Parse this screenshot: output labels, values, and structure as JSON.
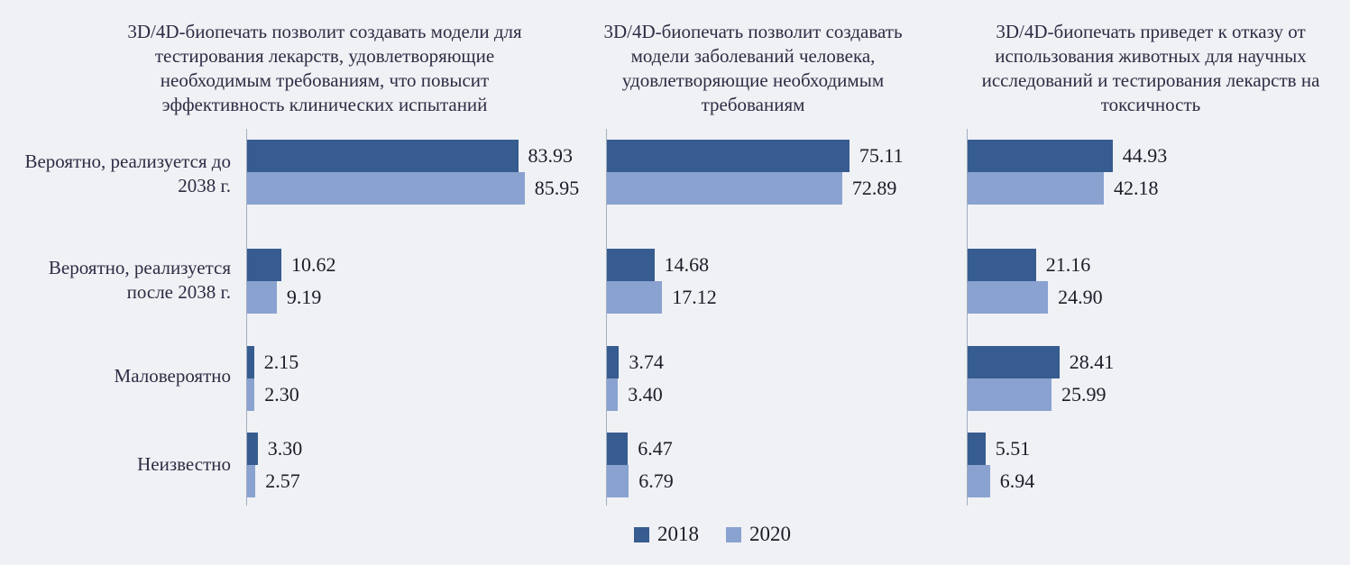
{
  "figure": {
    "background": "#eff1f5",
    "kind": "three-panel grouped horizontal bar chart"
  },
  "colors": {
    "series_2018": "#375c8f",
    "series_2020": "#8aa2d0",
    "axis_line": "#a3adbf",
    "title_text": "#2d2d44",
    "value_text": "#1c1c27",
    "background": "#eff1f5"
  },
  "legend": {
    "position": "bottom-center",
    "items": [
      {
        "label": "2018",
        "color": "#375c8f"
      },
      {
        "label": "2020",
        "color": "#8aa2d0"
      }
    ]
  },
  "chart_data": [
    {
      "type": "bar",
      "orientation": "horizontal",
      "title": "3D/4D-биопечать позволит создавать модели для тестирования лекарств, удовлетворяющие необходимым требованиям, что повысит эффективность клинических испытаний",
      "categories": [
        "Вероятно, реализуется до 2038 г.",
        "Вероятно, реализуется после 2038 г.",
        "Маловероятно",
        "Неизвестно"
      ],
      "series": [
        {
          "name": "2018",
          "values": [
            83.93,
            10.62,
            2.15,
            3.3
          ]
        },
        {
          "name": "2020",
          "values": [
            85.95,
            9.19,
            2.3,
            2.57
          ]
        }
      ],
      "xlim": [
        0,
        100
      ],
      "value_labels": true,
      "grid": false
    },
    {
      "type": "bar",
      "orientation": "horizontal",
      "title": "3D/4D-биопечать позволит создавать модели заболеваний человека, удовлетворяющие необходимым требованиям",
      "categories": [
        "Вероятно, реализуется до 2038 г.",
        "Вероятно, реализуется после 2038 г.",
        "Маловероятно",
        "Неизвестно"
      ],
      "series": [
        {
          "name": "2018",
          "values": [
            75.11,
            14.68,
            3.74,
            6.47
          ]
        },
        {
          "name": "2020",
          "values": [
            72.89,
            17.12,
            3.4,
            6.79
          ]
        }
      ],
      "xlim": [
        0,
        100
      ],
      "value_labels": true,
      "grid": false
    },
    {
      "type": "bar",
      "orientation": "horizontal",
      "title": "3D/4D-биопечать приведет к отказу от использования животных для научных исследований и тестирования лекарств на токсичность",
      "categories": [
        "Вероятно, реализуется до 2038 г.",
        "Вероятно, реализуется после 2038 г.",
        "Маловероятно",
        "Неизвестно"
      ],
      "series": [
        {
          "name": "2018",
          "values": [
            44.93,
            21.16,
            28.41,
            5.51
          ]
        },
        {
          "name": "2020",
          "values": [
            42.18,
            24.9,
            25.99,
            6.94
          ]
        }
      ],
      "xlim": [
        0,
        100
      ],
      "value_labels": true,
      "grid": false
    }
  ]
}
